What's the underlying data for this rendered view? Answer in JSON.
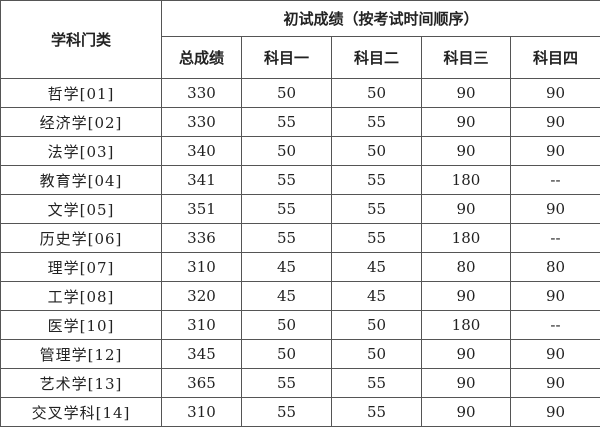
{
  "table": {
    "corner_header": "学科门类",
    "group_header": "初试成绩（按考试时间顺序）",
    "columns": [
      "总成绩",
      "科目一",
      "科目二",
      "科目三",
      "科目四"
    ],
    "rows": [
      [
        "哲学[01]",
        "330",
        "50",
        "50",
        "90",
        "90"
      ],
      [
        "经济学[02]",
        "330",
        "55",
        "55",
        "90",
        "90"
      ],
      [
        "法学[03]",
        "340",
        "50",
        "50",
        "90",
        "90"
      ],
      [
        "教育学[04]",
        "341",
        "55",
        "55",
        "180",
        "--"
      ],
      [
        "文学[05]",
        "351",
        "55",
        "55",
        "90",
        "90"
      ],
      [
        "历史学[06]",
        "336",
        "55",
        "55",
        "180",
        "--"
      ],
      [
        "理学[07]",
        "310",
        "45",
        "45",
        "80",
        "80"
      ],
      [
        "工学[08]",
        "320",
        "45",
        "45",
        "90",
        "90"
      ],
      [
        "医学[10]",
        "310",
        "50",
        "50",
        "180",
        "--"
      ],
      [
        "管理学[12]",
        "345",
        "50",
        "50",
        "90",
        "90"
      ],
      [
        "艺术学[13]",
        "365",
        "55",
        "55",
        "90",
        "90"
      ],
      [
        "交叉学科[14]",
        "310",
        "55",
        "55",
        "90",
        "90"
      ]
    ]
  }
}
